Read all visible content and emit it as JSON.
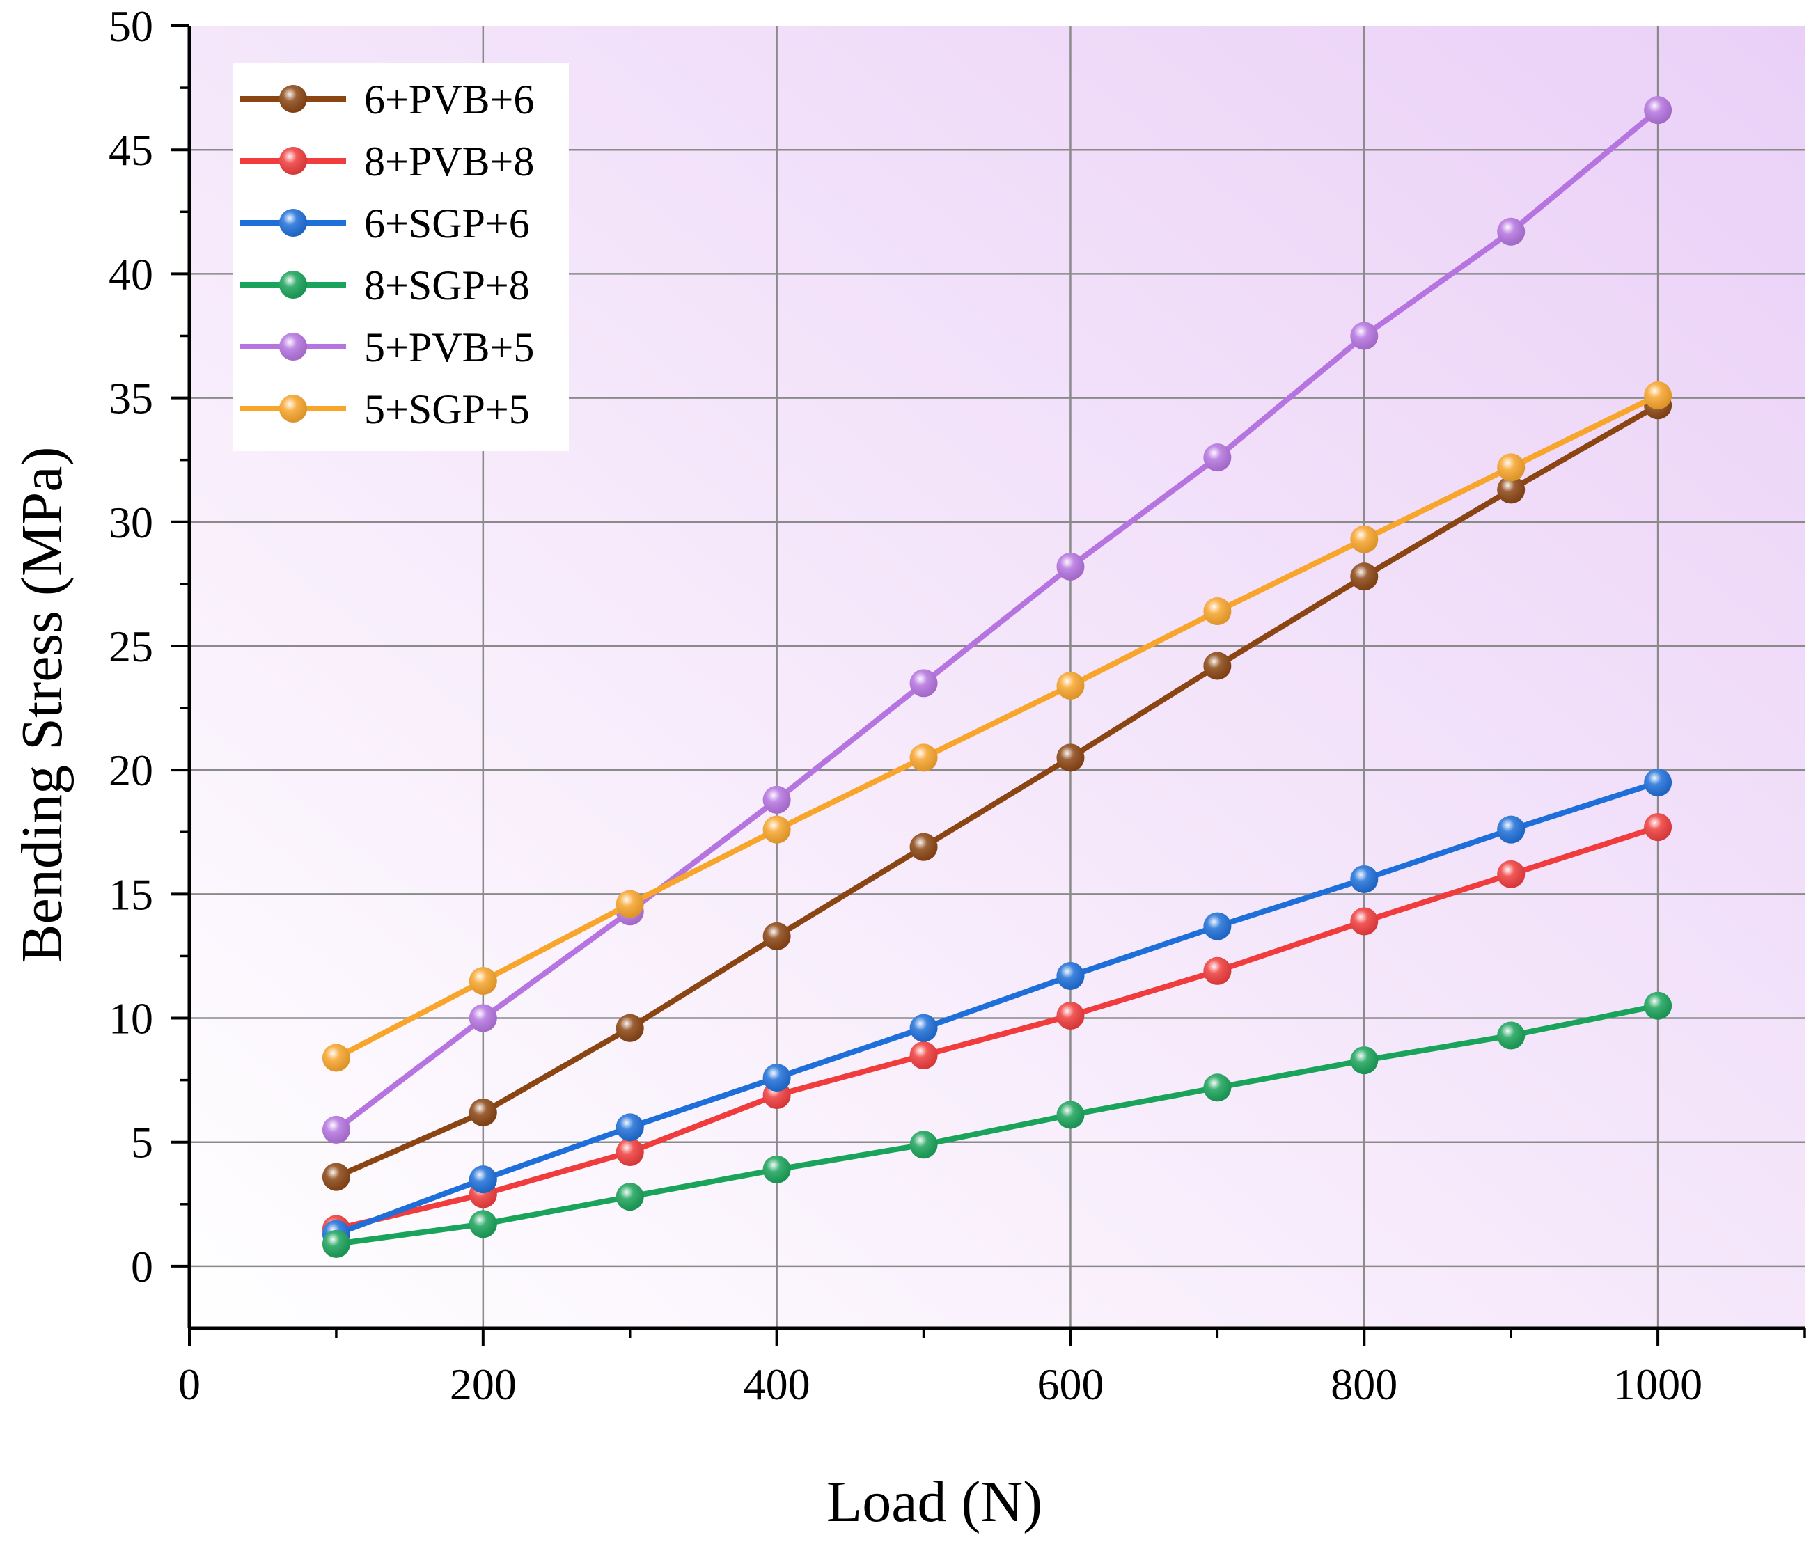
{
  "chart_data": {
    "type": "line",
    "title": "",
    "xlabel": "Load (N)",
    "ylabel": "Bending Stress (MPa)",
    "xlim": [
      0,
      1100
    ],
    "ylim": [
      -2.5,
      50
    ],
    "x_ticks": [
      0,
      200,
      400,
      600,
      800,
      1000
    ],
    "y_ticks": [
      0,
      5,
      10,
      15,
      20,
      25,
      30,
      35,
      40,
      45,
      50
    ],
    "x_tick_labels": [
      "0",
      "200",
      "400",
      "600",
      "800",
      "1000"
    ],
    "y_tick_labels": [
      "0",
      "5",
      "10",
      "15",
      "20",
      "25",
      "30",
      "35",
      "40",
      "45",
      "50"
    ],
    "grid": true,
    "legend_position": "top-left",
    "background": "light purple gradient",
    "x": [
      100,
      200,
      300,
      400,
      500,
      600,
      700,
      800,
      900,
      1000
    ],
    "series": [
      {
        "name": "6+PVB+6",
        "color": "#8B4513",
        "values": [
          3.6,
          6.2,
          9.6,
          13.3,
          16.9,
          20.5,
          24.2,
          27.8,
          31.3,
          34.7
        ]
      },
      {
        "name": "8+PVB+8",
        "color": "#F03C3C",
        "values": [
          1.5,
          2.9,
          4.6,
          6.9,
          8.5,
          10.1,
          11.9,
          13.9,
          15.8,
          17.7
        ]
      },
      {
        "name": "6+SGP+6",
        "color": "#1E6FD9",
        "values": [
          1.3,
          3.5,
          5.6,
          7.6,
          9.6,
          11.7,
          13.7,
          15.6,
          17.6,
          19.5
        ]
      },
      {
        "name": "8+SGP+8",
        "color": "#1AA35A",
        "values": [
          0.9,
          1.7,
          2.8,
          3.9,
          4.9,
          6.1,
          7.2,
          8.3,
          9.3,
          10.5
        ]
      },
      {
        "name": "5+PVB+5",
        "color": "#B574E0",
        "values": [
          5.5,
          10.0,
          14.3,
          18.8,
          23.5,
          28.2,
          32.6,
          37.5,
          41.7,
          46.6
        ]
      },
      {
        "name": "5+SGP+5",
        "color": "#F8A52C",
        "values": [
          8.4,
          11.5,
          14.6,
          17.6,
          20.5,
          23.4,
          26.4,
          29.3,
          32.2,
          35.1
        ]
      }
    ]
  }
}
